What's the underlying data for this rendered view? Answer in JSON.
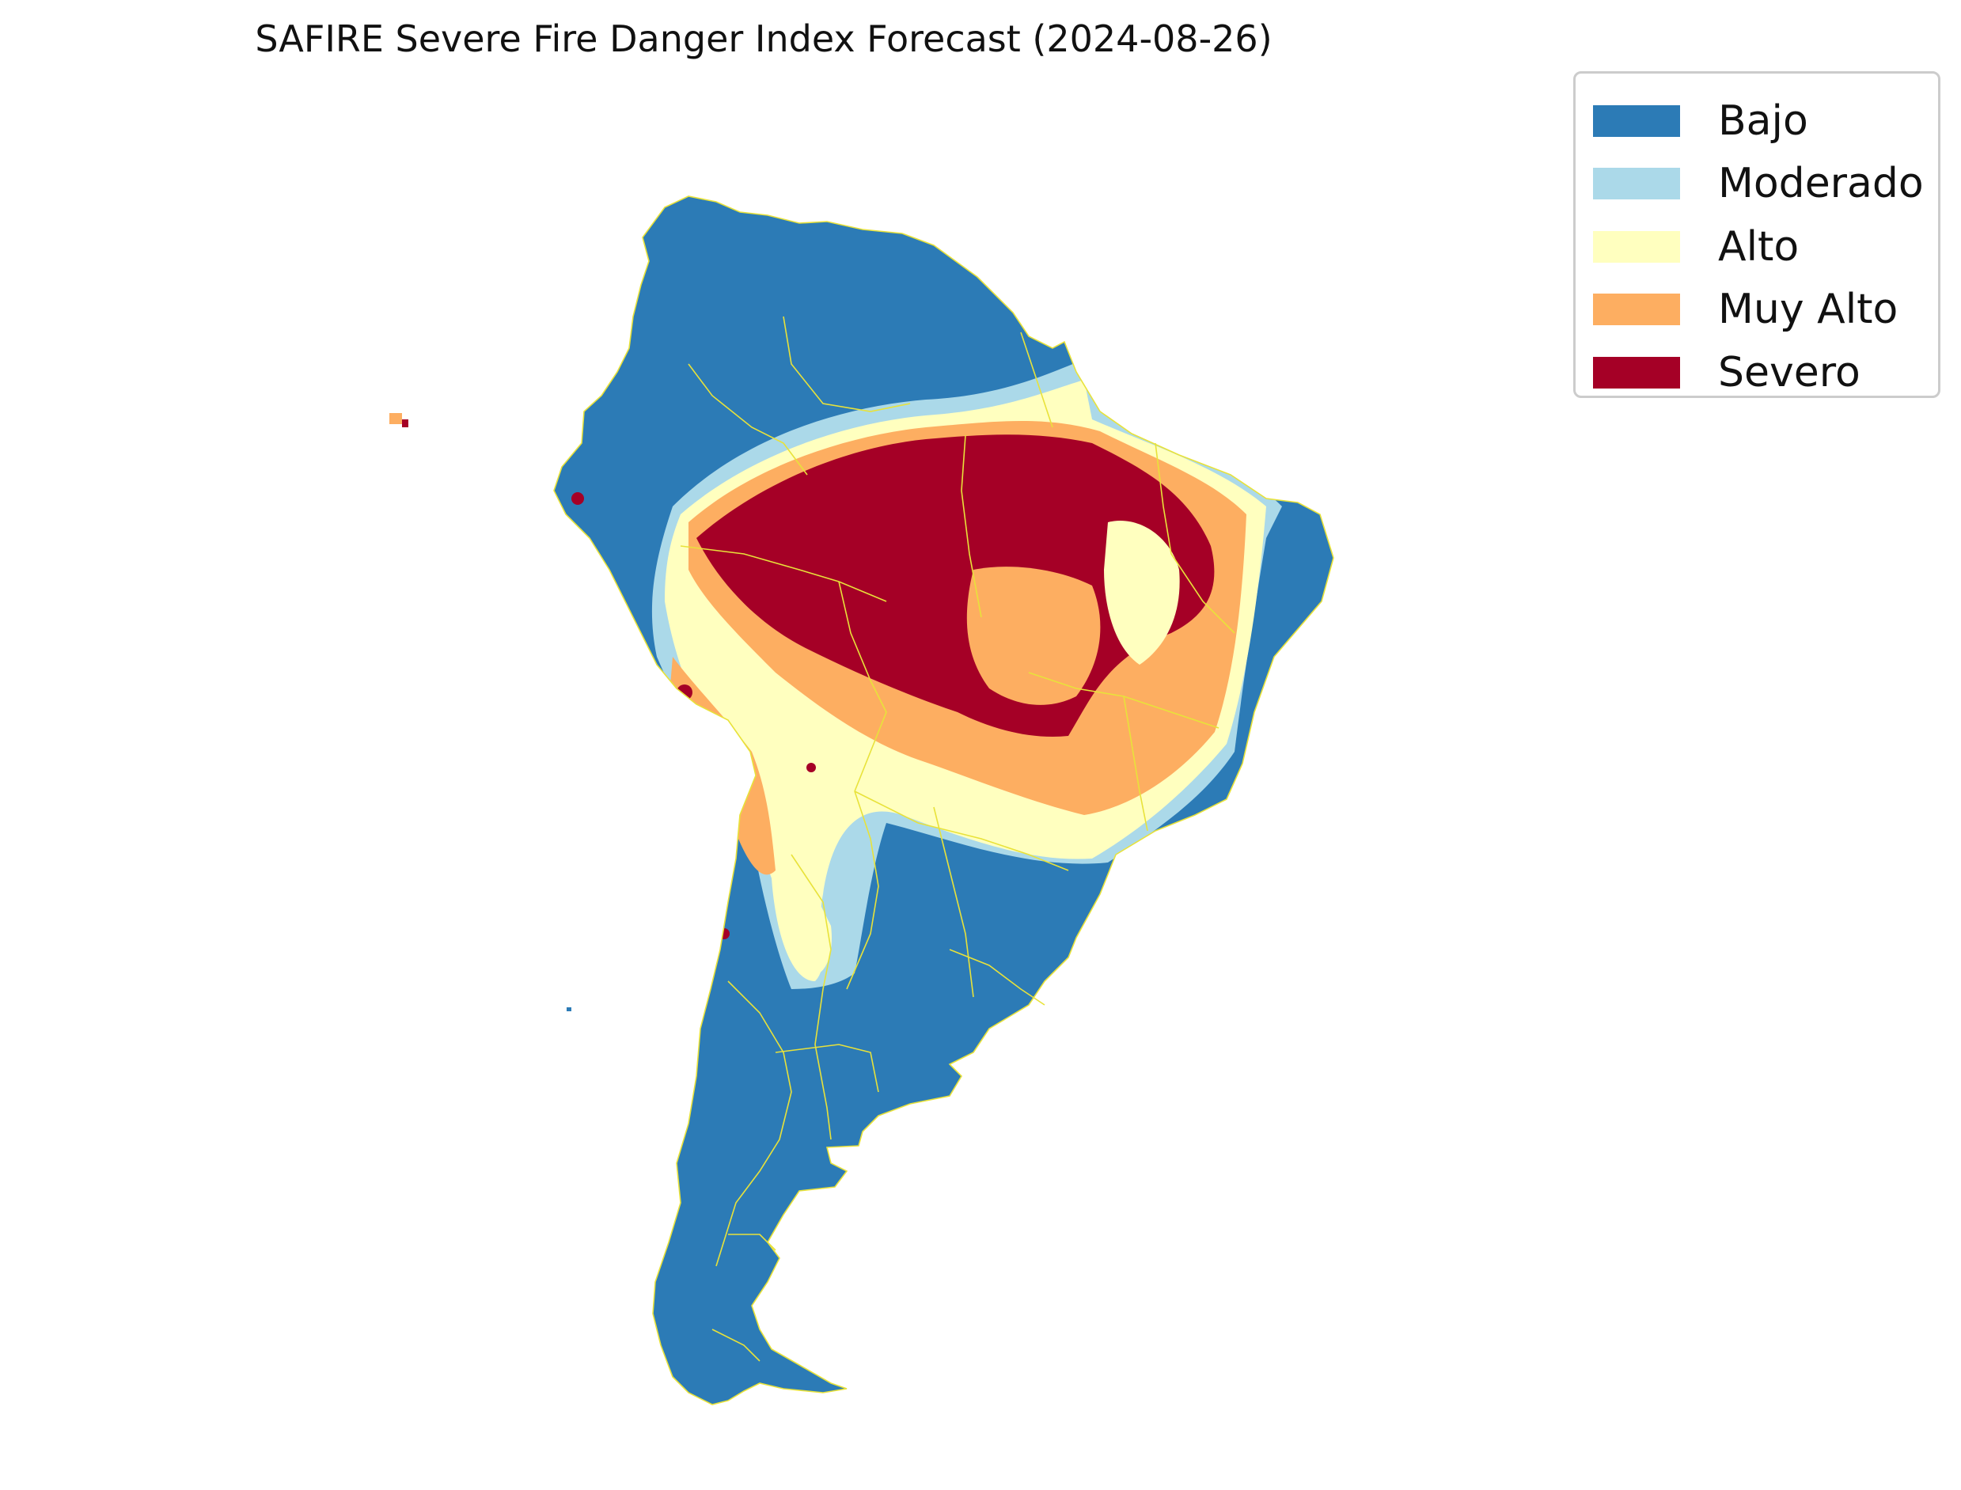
{
  "title": "SAFIRE Severe Fire Danger Index Forecast (2024-08-26)",
  "legend": {
    "items": [
      {
        "label": "Bajo",
        "color": "#2c7bb6"
      },
      {
        "label": "Moderado",
        "color": "#abd9e9"
      },
      {
        "label": "Alto",
        "color": "#ffffbf"
      },
      {
        "label": "Muy Alto",
        "color": "#fdae61"
      },
      {
        "label": "Severo",
        "color": "#a50026"
      }
    ]
  },
  "map": {
    "region": "South America",
    "border_color": "#e8e23a",
    "zones": [
      "Bajo",
      "Moderado",
      "Alto",
      "Muy Alto",
      "Severo"
    ]
  }
}
